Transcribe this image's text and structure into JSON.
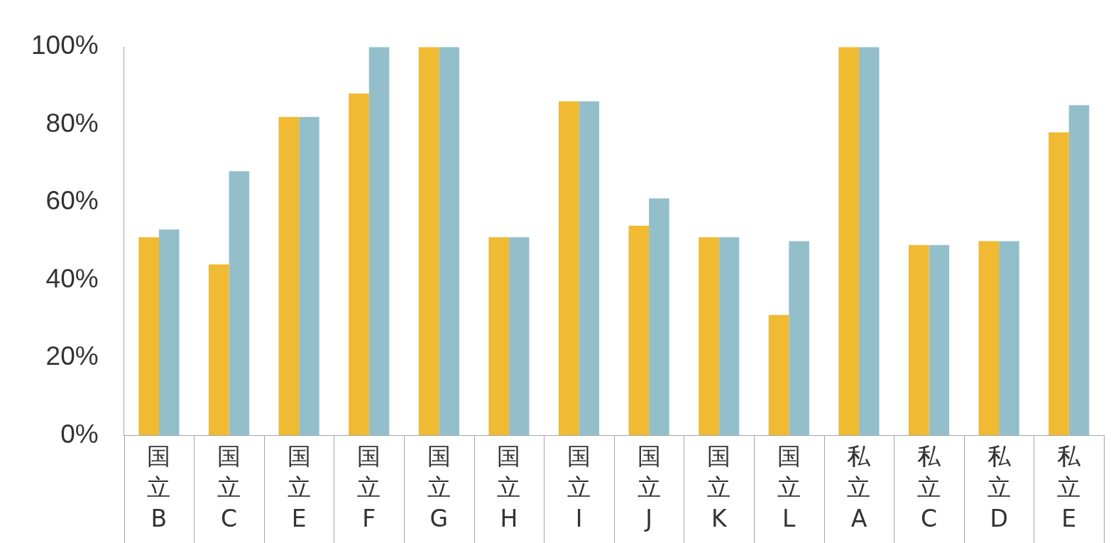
{
  "chart_data": {
    "type": "bar",
    "categories": [
      "国立B",
      "国立C",
      "国立E",
      "国立F",
      "国立G",
      "国立H",
      "国立I",
      "国立J",
      "国立K",
      "国立L",
      "私立A",
      "私立C",
      "私立D",
      "私立E"
    ],
    "series": [
      {
        "color": "#f0ba32",
        "values": [
          51,
          44,
          82,
          88,
          100,
          51,
          86,
          54,
          51,
          31,
          100,
          49,
          50,
          78
        ]
      },
      {
        "color": "#93bfcb",
        "values": [
          53,
          68,
          82,
          100,
          100,
          51,
          86,
          61,
          51,
          50,
          100,
          49,
          50,
          85
        ]
      }
    ],
    "ylim": [
      0,
      100
    ],
    "yticks": [
      {
        "value": 0,
        "label": "0%"
      },
      {
        "value": 20,
        "label": "20%"
      },
      {
        "value": 40,
        "label": "40%"
      },
      {
        "value": 60,
        "label": "60%"
      },
      {
        "value": 80,
        "label": "80%"
      },
      {
        "value": 100,
        "label": "100%"
      }
    ],
    "grid": false,
    "legend": false
  }
}
